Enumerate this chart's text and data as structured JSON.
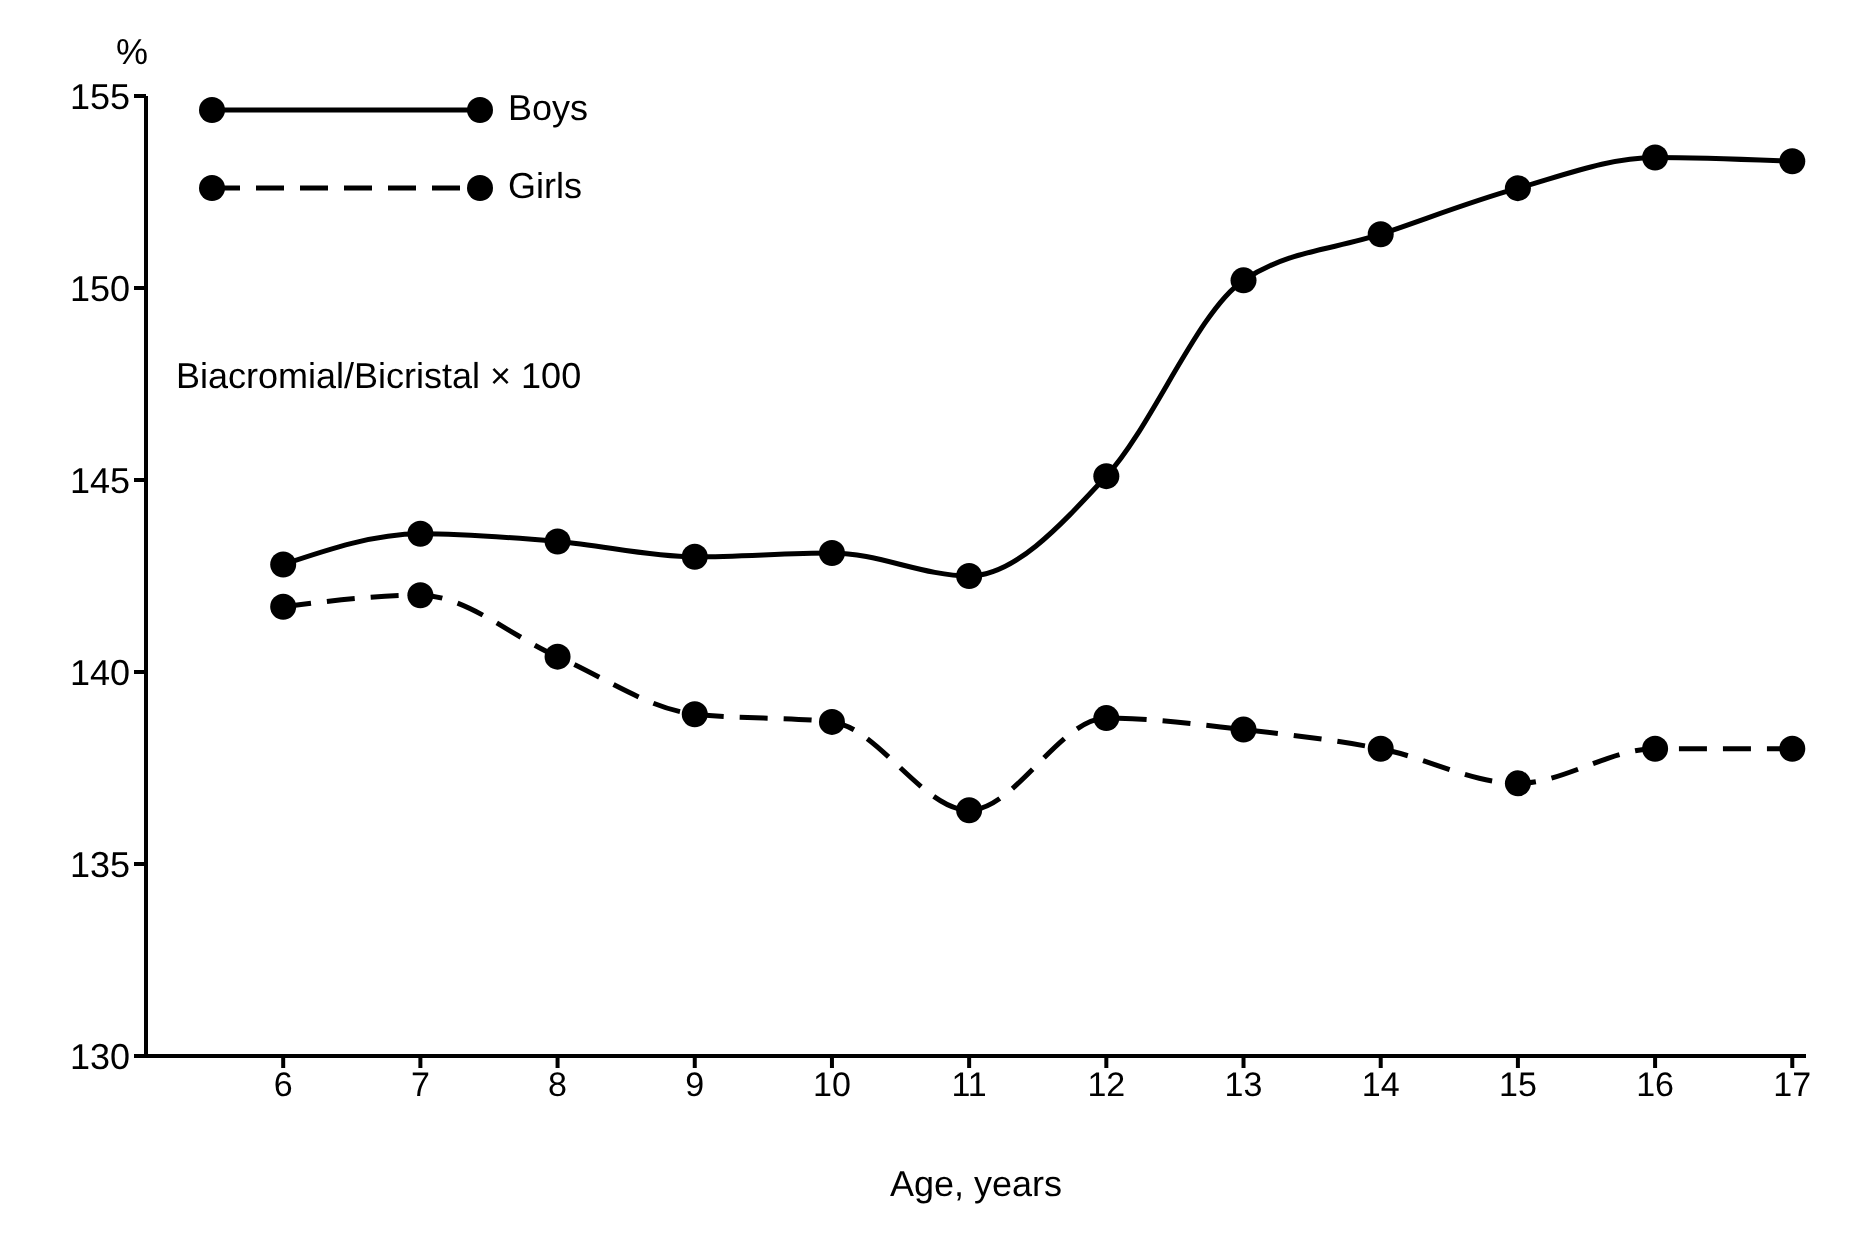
{
  "chart_data": {
    "type": "line",
    "xlabel": "Age, years",
    "ylabel": "%",
    "annotations": [
      "Biacromial/Bicristal × 100"
    ],
    "x": [
      6,
      7,
      8,
      9,
      10,
      11,
      12,
      13,
      14,
      15,
      16,
      17
    ],
    "series": [
      {
        "name": "Boys",
        "color": "#000000",
        "line_style": "solid",
        "values": [
          142.8,
          143.6,
          143.4,
          143.0,
          143.1,
          142.5,
          145.1,
          150.2,
          151.4,
          152.6,
          153.4,
          153.3
        ]
      },
      {
        "name": "Girls",
        "color": "#000000",
        "line_style": "dashed",
        "values": [
          141.7,
          142.0,
          140.4,
          138.9,
          138.7,
          136.4,
          138.8,
          138.5,
          138.0,
          137.1,
          138.0,
          138.0
        ]
      }
    ],
    "xlim": [
      5,
      17.1
    ],
    "xticks": [
      6,
      7,
      8,
      9,
      10,
      11,
      12,
      13,
      14,
      15,
      16,
      17
    ],
    "ylim": [
      130,
      155
    ],
    "yticks": [
      130,
      135,
      140,
      145,
      150,
      155
    ],
    "legend": "top left",
    "marker": "circle"
  }
}
